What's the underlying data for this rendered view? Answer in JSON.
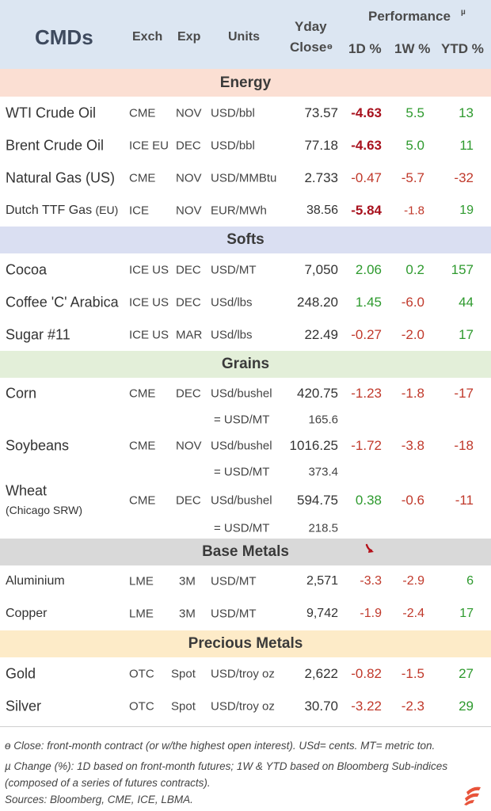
{
  "header": {
    "title": "CMDs",
    "exch": "Exch",
    "exp": "Exp",
    "units": "Units",
    "yday_line1": "Yday",
    "yday_line2": "Close",
    "yday_mark": "ɵ",
    "performance": "Performance",
    "performance_mark": "µ",
    "d1": "1D %",
    "w1": "1W %",
    "ytd": "YTD %"
  },
  "sections": {
    "energy": {
      "label": "Energy",
      "color": "#fbdfd3"
    },
    "softs": {
      "label": "Softs",
      "color": "#dadff2"
    },
    "grains": {
      "label": "Grains",
      "color": "#e3efd9"
    },
    "base": {
      "label": "Base Metals",
      "color": "#d9d9d9"
    },
    "precious": {
      "label": "Precious Metals",
      "color": "#fdebc8"
    }
  },
  "rows": {
    "wti": {
      "name": "WTI Crude Oil",
      "exch": "CME",
      "exp": "NOV",
      "units": "USD/bbl",
      "close": "73.57",
      "d1": "-4.63",
      "w1": "5.5",
      "ytd": "13"
    },
    "brent": {
      "name": "Brent Crude Oil",
      "exch": "ICE EU",
      "exp": "DEC",
      "units": "USD/bbl",
      "close": "77.18",
      "d1": "-4.63",
      "w1": "5.0",
      "ytd": "11"
    },
    "natgas": {
      "name": "Natural Gas (US)",
      "exch": "CME",
      "exp": "NOV",
      "units": "USD/MMBtu",
      "close": "2.733",
      "d1": "-0.47",
      "w1": "-5.7",
      "ytd": "-32"
    },
    "ttf": {
      "name": "Dutch TTF Gas",
      "name_suffix": "(EU)",
      "exch": "ICE",
      "exp": "NOV",
      "units": "EUR/MWh",
      "close": "38.56",
      "d1": "-5.84",
      "w1": "-1.8",
      "ytd": "19"
    },
    "cocoa": {
      "name": "Cocoa",
      "exch": "ICE US",
      "exp": "DEC",
      "units": "USD/MT",
      "close": "7,050",
      "d1": "2.06",
      "w1": "0.2",
      "ytd": "157"
    },
    "coffee": {
      "name": "Coffee 'C' Arabica",
      "exch": "ICE US",
      "exp": "DEC",
      "units": "USd/lbs",
      "close": "248.20",
      "d1": "1.45",
      "w1": "-6.0",
      "ytd": "44"
    },
    "sugar": {
      "name": "Sugar #11",
      "exch": "ICE US",
      "exp": "MAR",
      "units": "USd/lbs",
      "close": "22.49",
      "d1": "-0.27",
      "w1": "-2.0",
      "ytd": "17"
    },
    "corn": {
      "name": "Corn",
      "exch": "CME",
      "exp": "DEC",
      "units": "USd/bushel",
      "close": "420.75",
      "d1": "-1.23",
      "w1": "-1.8",
      "ytd": "-17",
      "conv_label": "= USD/MT",
      "conv_value": "165.6"
    },
    "soy": {
      "name": "Soybeans",
      "exch": "CME",
      "exp": "NOV",
      "units": "USd/bushel",
      "close": "1016.25",
      "d1": "-1.72",
      "w1": "-3.8",
      "ytd": "-18",
      "conv_label": "= USD/MT",
      "conv_value": "373.4"
    },
    "wheat": {
      "name": "Wheat",
      "name_sub": "(Chicago SRW)",
      "exch": "CME",
      "exp": "DEC",
      "units": "USd/bushel",
      "close": "594.75",
      "d1": "0.38",
      "w1": "-0.6",
      "ytd": "-11",
      "conv_label": "= USD/MT",
      "conv_value": "218.5"
    },
    "alu": {
      "name": "Aluminium",
      "exch": "LME",
      "exp": "3M",
      "units": "USD/MT",
      "close": "2,571",
      "d1": "-3.3",
      "w1": "-2.9",
      "ytd": "6"
    },
    "copper": {
      "name": "Copper",
      "exch": "LME",
      "exp": "3M",
      "units": "USD/MT",
      "close": "9,742",
      "d1": "-1.9",
      "w1": "-2.4",
      "ytd": "17"
    },
    "gold": {
      "name": "Gold",
      "exch": "OTC",
      "exp": "Spot",
      "units": "USD/troy oz",
      "close": "2,622",
      "d1": "-0.82",
      "w1": "-1.5",
      "ytd": "27"
    },
    "silver": {
      "name": "Silver",
      "exch": "OTC",
      "exp": "Spot",
      "units": "USD/troy oz",
      "close": "30.70",
      "d1": "-3.22",
      "w1": "-2.3",
      "ytd": "29"
    }
  },
  "footnotes": {
    "line1": "ɵ Close: front-month contract (or w/the highest open interest). USd= cents. MT= metric ton.",
    "line2": "µ Change (%): 1D based on front-month futures; 1W & YTD based on Bloomberg Sub-indices",
    "line3": "(composed of a series of futures contracts).",
    "line4": "Sources: Bloomberg, CME, ICE, LBMA."
  },
  "colors": {
    "negative": "#c0392b",
    "negative_strong": "#a8121e",
    "positive": "#2e9a2e",
    "header_bg": "#dce6f2"
  },
  "icons": {
    "down_arrow": "curved-down-arrow-icon",
    "logo": "brand-logo-icon"
  }
}
